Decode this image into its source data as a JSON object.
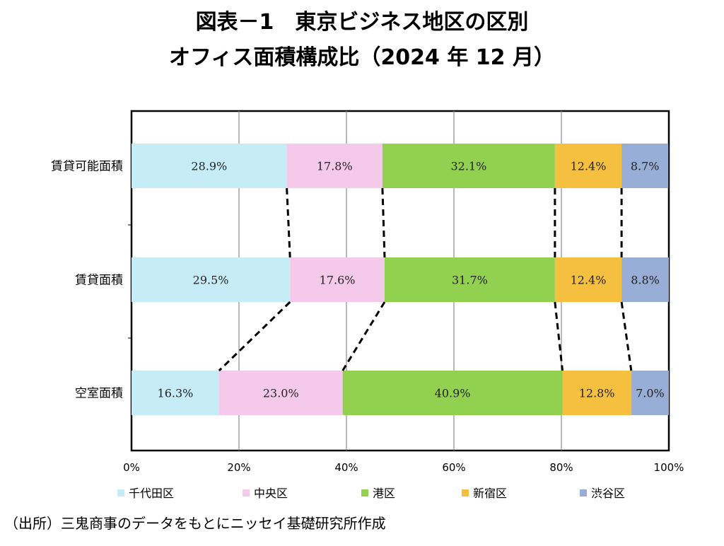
{
  "title_line1": "図表－1　東京ビジネス地区の区別",
  "title_line2": "オフィス面積構成比（2024 年 12 月）",
  "source_note": "（出所）三鬼商事のデータをもとにニッセイ基礎研究所作成",
  "chart_data": {
    "type": "bar",
    "orientation": "horizontal",
    "stacked": true,
    "percent": true,
    "title": "図表－1　東京ビジネス地区の区別 オフィス面積構成比（2024 年 12 月）",
    "categories": [
      "賃貸可能面積",
      "賃貸面積",
      "空室面積"
    ],
    "xlim": [
      0,
      100
    ],
    "xticks": [
      "0%",
      "20%",
      "40%",
      "60%",
      "80%",
      "100%"
    ],
    "grid": true,
    "legend_position": "bottom",
    "connector_lines": true,
    "series": [
      {
        "name": "千代田区",
        "color": "#c5ecf7",
        "values": [
          28.9,
          29.5,
          16.3
        ],
        "labels": [
          "28.9%",
          "29.5%",
          "16.3%"
        ]
      },
      {
        "name": "中央区",
        "color": "#f4c9ea",
        "values": [
          17.8,
          17.6,
          23.0
        ],
        "labels": [
          "17.8%",
          "17.6%",
          "23.0%"
        ]
      },
      {
        "name": "港区",
        "color": "#92d050",
        "values": [
          32.1,
          31.7,
          40.9
        ],
        "labels": [
          "32.1%",
          "31.7%",
          "40.9%"
        ]
      },
      {
        "name": "新宿区",
        "color": "#f5c040",
        "values": [
          12.4,
          12.4,
          12.8
        ],
        "labels": [
          "12.4%",
          "12.4%",
          "12.8%"
        ]
      },
      {
        "name": "渋谷区",
        "color": "#98aed6",
        "values": [
          8.7,
          8.8,
          7.0
        ],
        "labels": [
          "8.7%",
          "8.8%",
          "7.0%"
        ]
      }
    ]
  }
}
